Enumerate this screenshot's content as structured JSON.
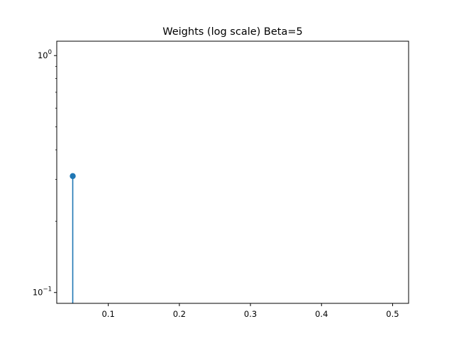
{
  "chart_data": {
    "type": "stem",
    "title": "Weights (log scale) Beta=5",
    "xlabel": "",
    "ylabel": "",
    "x": [
      0.05
    ],
    "y": [
      0.31
    ],
    "xlim": [
      0.0275,
      0.5225
    ],
    "ylim": [
      0.09,
      1.15
    ],
    "yscale": "log",
    "xticks": [
      0.1,
      0.2,
      0.3,
      0.4,
      0.5
    ],
    "xtick_labels": [
      "0.1",
      "0.2",
      "0.3",
      "0.4",
      "0.5"
    ],
    "yticks": [
      0.1,
      1.0
    ],
    "ytick_base": "10",
    "ytick_exponents": [
      "−1",
      "0"
    ],
    "grid": false,
    "color": "#1f77b4"
  }
}
